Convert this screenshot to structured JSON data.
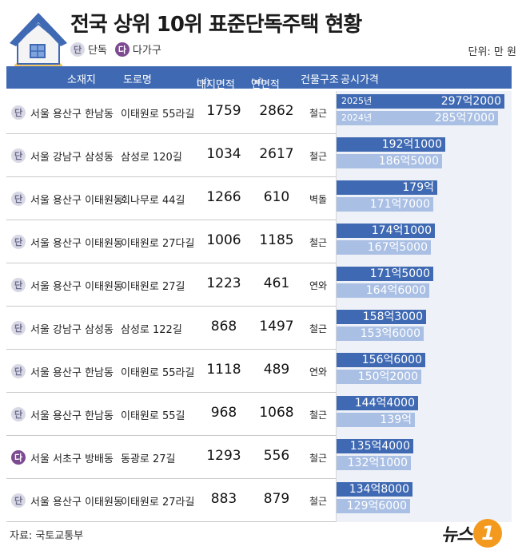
{
  "title": "전국 상위 10위 표준단독주택 현황",
  "legend": {
    "single_badge": "단",
    "single_label": "단독",
    "multi_badge": "다",
    "multi_label": "다가구"
  },
  "unit": "단위: 만 원",
  "headers": {
    "location": "소재지",
    "road": "도로명",
    "land_area": "대지면적",
    "floor_area": "연면적",
    "area_unit": "(㎡)",
    "structure": "건물구조",
    "price": "공시가격"
  },
  "year_labels": {
    "y2025": "2025년",
    "y2024": "2024년"
  },
  "colors": {
    "header": "#3f6ab3",
    "bar_2025": "#3f6ab3",
    "bar_2024": "#a9bfe4",
    "multi_badge": "#7d4a92",
    "logo": "#f39a1e"
  },
  "chart_data": {
    "type": "bar",
    "series": [
      {
        "name": "2025년"
      },
      {
        "name": "2024년"
      }
    ],
    "rows": [
      {
        "type_badge": "단",
        "type": "single",
        "location": "서울 용산구 한남동",
        "road": "이태원로 55라길",
        "land_area": "1759",
        "floor_area": "2862",
        "structure": "철근",
        "price_2025": "297억2000",
        "price_2024": "285억7000",
        "value_2025": 2972000,
        "value_2024": 2857000
      },
      {
        "type_badge": "단",
        "type": "single",
        "location": "서울 강남구 삼성동",
        "road": "삼성로 120길",
        "land_area": "1034",
        "floor_area": "2617",
        "structure": "철근",
        "price_2025": "192억1000",
        "price_2024": "186억5000",
        "value_2025": 1921000,
        "value_2024": 1865000
      },
      {
        "type_badge": "단",
        "type": "single",
        "location": "서울 용산구 이태원동",
        "road": "회나무로 44길",
        "land_area": "1266",
        "floor_area": "610",
        "structure": "벽돌",
        "price_2025": "179억",
        "price_2024": "171억7000",
        "value_2025": 1790000,
        "value_2024": 1717000
      },
      {
        "type_badge": "단",
        "type": "single",
        "location": "서울 용산구 이태원동",
        "road": "이태원로 27다길",
        "land_area": "1006",
        "floor_area": "1185",
        "structure": "철근",
        "price_2025": "174억1000",
        "price_2024": "167억5000",
        "value_2025": 1741000,
        "value_2024": 1675000
      },
      {
        "type_badge": "단",
        "type": "single",
        "location": "서울 용산구 이태원동",
        "road": "이태원로 27길",
        "land_area": "1223",
        "floor_area": "461",
        "structure": "연와",
        "price_2025": "171억5000",
        "price_2024": "164억6000",
        "value_2025": 1715000,
        "value_2024": 1646000
      },
      {
        "type_badge": "단",
        "type": "single",
        "location": "서울 강남구 삼성동",
        "road": "삼성로 122길",
        "land_area": "868",
        "floor_area": "1497",
        "structure": "철근",
        "price_2025": "158억3000",
        "price_2024": "153억6000",
        "value_2025": 1583000,
        "value_2024": 1536000
      },
      {
        "type_badge": "단",
        "type": "single",
        "location": "서울 용산구 한남동",
        "road": "이태원로 55라길",
        "land_area": "1118",
        "floor_area": "489",
        "structure": "연와",
        "price_2025": "156억6000",
        "price_2024": "150억2000",
        "value_2025": 1566000,
        "value_2024": 1502000
      },
      {
        "type_badge": "단",
        "type": "single",
        "location": "서울 용산구 한남동",
        "road": "이태원로 55길",
        "land_area": "968",
        "floor_area": "1068",
        "structure": "철근",
        "price_2025": "144억4000",
        "price_2024": "139억",
        "value_2025": 1444000,
        "value_2024": 1390000
      },
      {
        "type_badge": "다",
        "type": "multi",
        "location": "서울 서초구 방배동",
        "road": "동광로 27길",
        "land_area": "1293",
        "floor_area": "556",
        "structure": "철근",
        "price_2025": "135억4000",
        "price_2024": "132억1000",
        "value_2025": 1354000,
        "value_2024": 1321000
      },
      {
        "type_badge": "단",
        "type": "single",
        "location": "서울 용산구 이태원동",
        "road": "이태원로 27라길",
        "land_area": "883",
        "floor_area": "879",
        "structure": "철근",
        "price_2025": "134억8000",
        "price_2024": "129억6000",
        "value_2025": 1348000,
        "value_2024": 1296000
      }
    ]
  },
  "footer": {
    "source": "자료: 국토교통부",
    "logo_text": "뉴스",
    "logo_mark": "1"
  }
}
